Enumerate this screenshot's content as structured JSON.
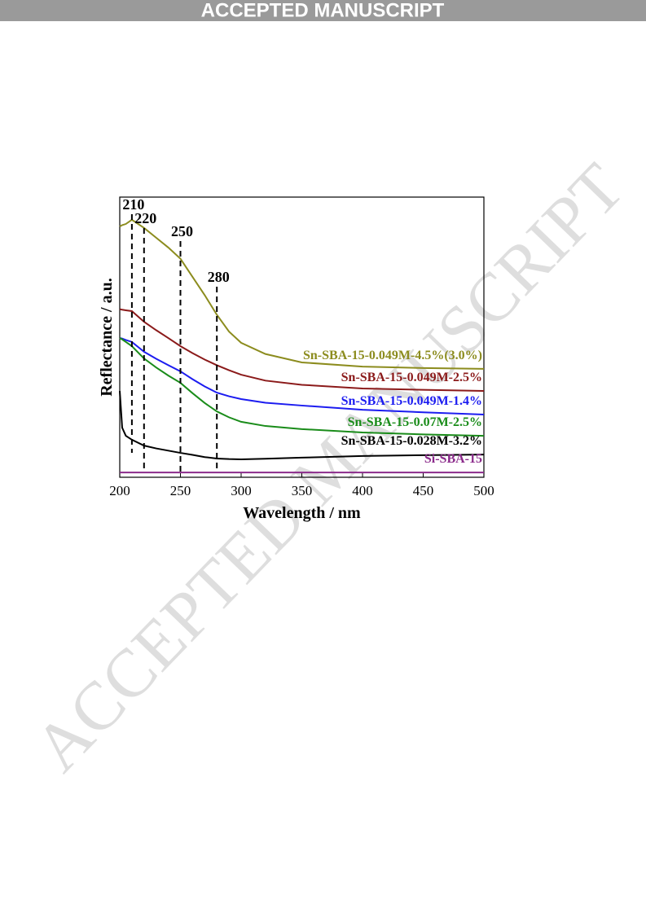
{
  "header": "ACCEPTED MANUSCRIPT",
  "watermark": "ACCEPTED MANUSCRIPT",
  "chart_data": {
    "type": "line",
    "xlabel": "Wavelength / nm",
    "ylabel": "Reflectance / a.u.",
    "x": [
      200,
      202,
      205,
      210,
      220,
      230,
      240,
      250,
      260,
      270,
      280,
      290,
      300,
      320,
      350,
      400,
      450,
      500
    ],
    "xlim": [
      200,
      500
    ],
    "xticks": [
      200,
      250,
      300,
      350,
      400,
      450,
      500
    ],
    "ylim": [
      0,
      100
    ],
    "vlines": [
      210,
      220,
      250,
      280
    ],
    "series": [
      {
        "name": "Sn-SBA-15-0.049M-4.5%(3.0%)",
        "color": "#8c8c1e",
        "values": [
          89.5,
          90,
          90.4,
          91.9,
          89,
          85.5,
          82,
          78,
          71.5,
          65,
          58,
          52,
          48,
          44,
          41,
          39.5,
          39,
          38.7
        ]
      },
      {
        "name": "Sn-SBA-15-0.049M-2.5%",
        "color": "#8b1a1a",
        "values": [
          60,
          59.8,
          59.6,
          59.3,
          55.5,
          52.5,
          49.7,
          46.8,
          44.3,
          42,
          40,
          38.2,
          36.6,
          34.5,
          33,
          31.7,
          31.2,
          30.8
        ]
      },
      {
        "name": "Sn-SBA-15-0.049M-1.4%",
        "color": "#1c1cf0",
        "values": [
          49.7,
          49.5,
          49,
          48.3,
          44.8,
          42.3,
          40,
          37.8,
          35,
          32.4,
          30.2,
          28.9,
          27.9,
          26.6,
          25.6,
          24.1,
          23.2,
          22.4
        ]
      },
      {
        "name": "Sn-SBA-15-0.07M-2.5%",
        "color": "#1a8c1a",
        "values": [
          49.7,
          49.2,
          48.3,
          46.8,
          42.4,
          39.2,
          36.3,
          33.7,
          30,
          26.5,
          23.5,
          21.4,
          19.8,
          18.3,
          17.2,
          16,
          15.3,
          14.8
        ]
      },
      {
        "name": "Sn-SBA-15-0.028M-3.2%",
        "color": "#000000",
        "values": [
          30.8,
          17.7,
          14.8,
          13.4,
          11.3,
          10.3,
          9.5,
          8.7,
          8,
          7.2,
          6.7,
          6.5,
          6.4,
          6.6,
          7,
          7.6,
          7.9,
          8.1
        ]
      },
      {
        "name": "Si-SBA-15",
        "color": "#8b2b8b",
        "values": [
          1.7,
          1.7,
          1.7,
          1.7,
          1.7,
          1.7,
          1.7,
          1.7,
          1.7,
          1.7,
          1.7,
          1.7,
          1.7,
          1.7,
          1.7,
          1.7,
          1.7,
          1.7
        ]
      }
    ]
  }
}
